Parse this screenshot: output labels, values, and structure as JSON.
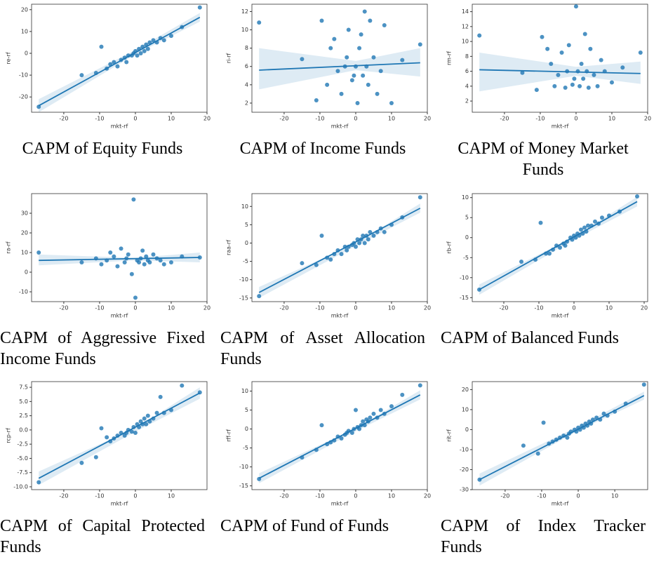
{
  "chart_data": [
    {
      "type": "scatter",
      "title": "CAPM of Equity Funds",
      "xlabel": "mkt-rf",
      "ylabel": "re-rf",
      "color": "#1f77b4",
      "xlim": [
        -29,
        20
      ],
      "xticks": [
        -20,
        -10,
        0,
        10,
        20
      ],
      "ylim": [
        -27,
        22.5
      ],
      "yticks": [
        -20,
        -10,
        0,
        10,
        20
      ],
      "x": [
        -27,
        -15,
        -11,
        -9.5,
        -8,
        -7,
        -6,
        -5,
        -4,
        -3,
        -2.5,
        -2,
        -1,
        -0.5,
        0,
        0.5,
        1,
        1.5,
        2,
        2.5,
        3,
        3.5,
        4,
        5,
        6,
        7,
        8,
        10,
        13,
        18
      ],
      "y": [
        -24.5,
        -10,
        -9,
        3,
        -7,
        -5,
        -4,
        -6,
        -3,
        -2,
        -4,
        -1,
        -1,
        0,
        1,
        -1,
        2,
        0,
        3,
        1,
        4,
        2,
        5,
        6,
        5,
        7,
        6,
        8,
        12,
        21
      ],
      "fit": {
        "x": [
          -27,
          18
        ],
        "y": [
          -24,
          16.5
        ]
      },
      "band": {
        "x": [
          -27,
          0,
          18
        ],
        "lower": [
          -27,
          -0.5,
          14.5
        ],
        "upper": [
          -21,
          1.5,
          18.5
        ]
      }
    },
    {
      "type": "scatter",
      "title": "CAPM of Income Funds",
      "xlabel": "mkt-rf",
      "ylabel": "ri-rf",
      "color": "#1f77b4",
      "xlim": [
        -29,
        20
      ],
      "xticks": [
        -20,
        -10,
        0,
        10,
        20
      ],
      "ylim": [
        1,
        12.8
      ],
      "yticks": [
        2,
        4,
        6,
        8,
        10,
        12
      ],
      "x": [
        -27,
        -15,
        -11,
        -9.5,
        -8,
        -7,
        -6,
        -5,
        -4,
        -3,
        -2.5,
        -2,
        -1,
        -0.5,
        0,
        0.5,
        1,
        1.5,
        2,
        2.5,
        3,
        3.5,
        4,
        5,
        6,
        7,
        8,
        10,
        13,
        18
      ],
      "y": [
        10.8,
        6.8,
        2.3,
        11,
        4,
        8,
        9,
        5.5,
        3,
        6,
        7,
        10,
        4.5,
        5,
        6,
        2,
        8,
        9.5,
        5,
        12,
        6,
        4,
        11,
        7,
        3,
        5.5,
        10.5,
        2,
        6.7,
        8.4
      ],
      "fit": {
        "x": [
          -27,
          18
        ],
        "y": [
          5.6,
          6.4
        ]
      },
      "band": {
        "x": [
          -27,
          0,
          18
        ],
        "lower": [
          3.5,
          5.6,
          4.9
        ],
        "upper": [
          8,
          6.6,
          8
        ]
      }
    },
    {
      "type": "scatter",
      "title": "CAPM of Money Market Funds",
      "xlabel": "mkt-rf",
      "ylabel": "rm-rf",
      "color": "#1f77b4",
      "xlim": [
        -29,
        20
      ],
      "xticks": [
        -20,
        -10,
        0,
        10,
        20
      ],
      "ylim": [
        0.5,
        15
      ],
      "yticks": [
        2,
        4,
        6,
        8,
        10,
        12,
        14
      ],
      "x": [
        -27,
        -15,
        -11,
        -9.5,
        -8,
        -7,
        -6,
        -5,
        -4,
        -3,
        -2.5,
        -2,
        -1,
        -0.5,
        0,
        0.5,
        1,
        1.5,
        2,
        2.5,
        3,
        3.5,
        4,
        5,
        6,
        7,
        8,
        10,
        13,
        18
      ],
      "y": [
        10.8,
        5.8,
        3.5,
        10.6,
        9,
        7,
        4,
        5.5,
        8.5,
        3.8,
        6,
        9.5,
        4.2,
        5,
        14.7,
        6,
        4,
        7,
        5,
        11,
        6,
        3.8,
        9,
        5.5,
        4,
        7.5,
        6,
        4.5,
        6.5,
        8.5
      ],
      "fit": {
        "x": [
          -27,
          18
        ],
        "y": [
          6.2,
          5.7
        ]
      },
      "band": {
        "x": [
          -27,
          0,
          18
        ],
        "lower": [
          3.3,
          5.4,
          4.3
        ],
        "upper": [
          8.5,
          6.6,
          7.3
        ]
      }
    },
    {
      "type": "scatter",
      "title": "CAPM of Aggressive Fixed Income Funds",
      "xlabel": "mkt-rf",
      "ylabel": "ra-rf",
      "color": "#1f77b4",
      "xlim": [
        -29,
        20
      ],
      "xticks": [
        -20,
        -10,
        0,
        10,
        20
      ],
      "ylim": [
        -15,
        40
      ],
      "yticks": [
        -10,
        0,
        10,
        20,
        30
      ],
      "x": [
        -27,
        -15,
        -11,
        -9.5,
        -8,
        -7,
        -6,
        -5,
        -4,
        -3,
        -2.5,
        -2,
        -1,
        -0.5,
        0,
        0.5,
        1,
        1.5,
        2,
        2.5,
        3,
        3.5,
        4,
        5,
        6,
        7,
        8,
        10,
        13,
        18
      ],
      "y": [
        10,
        5,
        7,
        4,
        6,
        10,
        8,
        3,
        12,
        5,
        7,
        9,
        -1,
        37,
        -13,
        6,
        5,
        7,
        11,
        4,
        8,
        6,
        5,
        9,
        7,
        6,
        4,
        5,
        8,
        7.5
      ],
      "fit": {
        "x": [
          -27,
          18
        ],
        "y": [
          6,
          7.5
        ]
      },
      "band": {
        "x": [
          -27,
          0,
          18
        ],
        "lower": [
          3.5,
          6,
          5
        ],
        "upper": [
          9,
          7.3,
          10
        ]
      }
    },
    {
      "type": "scatter",
      "title": "CAPM of Asset Allocation Funds",
      "xlabel": "mkt-rf",
      "ylabel": "raa-rf",
      "color": "#1f77b4",
      "xlim": [
        -29,
        20
      ],
      "xticks": [
        -20,
        -10,
        0,
        10,
        20
      ],
      "ylim": [
        -16,
        13.5
      ],
      "yticks": [
        -15,
        -10,
        -5,
        0,
        5,
        10
      ],
      "x": [
        -27,
        -15,
        -11,
        -9.5,
        -8,
        -7,
        -6,
        -5,
        -4,
        -3,
        -2.5,
        -2,
        -1,
        -0.5,
        0,
        0.5,
        1,
        1.5,
        2,
        2.5,
        3,
        3.5,
        4,
        5,
        6,
        7,
        8,
        10,
        13,
        18
      ],
      "y": [
        -14.5,
        -5.5,
        -6,
        2,
        -4,
        -4.5,
        -3,
        -2,
        -3,
        -1,
        -2,
        -1,
        -0.5,
        0,
        -1,
        1,
        0,
        1,
        2,
        0,
        2,
        1,
        3,
        2,
        3,
        4,
        3,
        5,
        7,
        12.5
      ],
      "fit": {
        "x": [
          -27,
          18
        ],
        "y": [
          -13.5,
          9.5
        ]
      },
      "band": {
        "x": [
          -27,
          0,
          18
        ],
        "lower": [
          -15,
          -0.8,
          8.3
        ],
        "upper": [
          -12,
          -0.1,
          10.8
        ]
      }
    },
    {
      "type": "scatter",
      "title": "CAPM of Balanced Funds",
      "xlabel": "mkt-rf",
      "ylabel": "rb-rf",
      "color": "#1f77b4",
      "xlim": [
        -29,
        21
      ],
      "xticks": [
        -20,
        -10,
        0,
        10,
        20
      ],
      "ylim": [
        -16,
        11
      ],
      "yticks": [
        -15,
        -10,
        -5,
        0,
        5,
        10
      ],
      "x": [
        -27,
        -15,
        -11,
        -9.5,
        -8,
        -7,
        -6,
        -5,
        -4,
        -3,
        -2.5,
        -2,
        -1,
        -0.5,
        0,
        0.5,
        1,
        1.5,
        2,
        2.5,
        3,
        3.5,
        4,
        5,
        6,
        7,
        8,
        10,
        13,
        18
      ],
      "y": [
        -13,
        -6,
        -5.5,
        3.7,
        -4,
        -4,
        -3,
        -2,
        -2.5,
        -1.5,
        -2,
        -1,
        0,
        -0.5,
        0.5,
        0,
        1,
        0.5,
        2,
        1,
        2.5,
        1.5,
        3,
        3,
        4,
        3.5,
        5,
        5.5,
        6.5,
        10.3
      ],
      "fit": {
        "x": [
          -27,
          18
        ],
        "y": [
          -13,
          9
        ]
      },
      "band": {
        "x": [
          -27,
          0,
          18
        ],
        "lower": [
          -14.3,
          -0.5,
          7.8
        ],
        "upper": [
          -11.7,
          0.2,
          10.2
        ]
      }
    },
    {
      "type": "scatter",
      "title": "CAPM of Capital Protected Funds",
      "xlabel": "mkt-rf",
      "ylabel": "rcp-rf",
      "color": "#1f77b4",
      "xlim": [
        -29,
        20
      ],
      "xticks": [
        -20,
        -10,
        0,
        10
      ],
      "ylim": [
        -10.5,
        8.5
      ],
      "yticks": [
        {
          "value": -10,
          "label": "-10.0"
        },
        {
          "value": -7.5,
          "label": "-7.5"
        },
        {
          "value": -5,
          "label": "-5.0"
        },
        {
          "value": -2.5,
          "label": "-2.5"
        },
        {
          "value": 0,
          "label": "0.0"
        },
        {
          "value": 2.5,
          "label": "2.5"
        },
        {
          "value": 5,
          "label": "5.0"
        },
        {
          "value": 7.5,
          "label": "7.5"
        }
      ],
      "x": [
        -27,
        -15,
        -11,
        -9.5,
        -8,
        -7,
        -6,
        -5,
        -4,
        -3,
        -2.5,
        -2,
        -1,
        -0.5,
        0,
        0.5,
        1,
        1.5,
        2,
        2.5,
        3,
        3.5,
        4,
        5,
        6,
        7,
        8,
        10,
        13,
        18
      ],
      "y": [
        -9.2,
        -5.8,
        -4.8,
        0.3,
        -1.3,
        -2,
        -1.5,
        -1,
        -0.5,
        -1,
        -0.5,
        0,
        -0.3,
        0.5,
        -0.5,
        1,
        0.5,
        1.5,
        1,
        2,
        1,
        2.5,
        1.5,
        2,
        3,
        5.8,
        3,
        3.5,
        7.8,
        6.6
      ],
      "fit": {
        "x": [
          -27,
          18
        ],
        "y": [
          -8.5,
          6.5
        ]
      },
      "band": {
        "x": [
          -27,
          0,
          18
        ],
        "lower": [
          -9.7,
          -0.3,
          5.5
        ],
        "upper": [
          -7.3,
          0.3,
          7.5
        ]
      }
    },
    {
      "type": "scatter",
      "title": "CAPM of Fund of Funds",
      "xlabel": "mkt-rf",
      "ylabel": "rff-rf",
      "color": "#1f77b4",
      "xlim": [
        -29,
        20
      ],
      "xticks": [
        -20,
        -10,
        0,
        10,
        20
      ],
      "ylim": [
        -16,
        12.5
      ],
      "yticks": [
        -15,
        -10,
        -5,
        0,
        5,
        10
      ],
      "x": [
        -27,
        -15,
        -11,
        -9.5,
        -8,
        -7,
        -6,
        -5,
        -4,
        -3,
        -2.5,
        -2,
        -1,
        -0.5,
        0,
        0.5,
        1,
        1.5,
        2,
        2.5,
        3,
        3.5,
        4,
        5,
        6,
        7,
        8,
        10,
        13,
        18
      ],
      "y": [
        -13.2,
        -7.5,
        -5.5,
        1,
        -4,
        -3.5,
        -3,
        -2,
        -2.5,
        -1.5,
        -1,
        -0.5,
        -1,
        0,
        5,
        0.5,
        0,
        1,
        2,
        1,
        2.5,
        2,
        3,
        4,
        3,
        5,
        4,
        6,
        9,
        11.5
      ],
      "fit": {
        "x": [
          -27,
          18
        ],
        "y": [
          -13,
          9
        ]
      },
      "band": {
        "x": [
          -27,
          0,
          18
        ],
        "lower": [
          -14.3,
          -0.6,
          7.8
        ],
        "upper": [
          -11.7,
          0.2,
          10.2
        ]
      }
    },
    {
      "type": "scatter",
      "title": "CAPM of Index Tracker Funds",
      "xlabel": "mkt-rf",
      "ylabel": "rit-rf",
      "color": "#1f77b4",
      "xlim": [
        -29,
        19
      ],
      "xticks": [
        -20,
        -10,
        0,
        10
      ],
      "ylim": [
        -30,
        24
      ],
      "yticks": [
        -30,
        -20,
        -10,
        0,
        10,
        20
      ],
      "x": [
        -27,
        -15,
        -11,
        -9.5,
        -8,
        -7,
        -6,
        -5,
        -4,
        -3,
        -2.5,
        -2,
        -1,
        -0.5,
        0,
        0.5,
        1,
        1.5,
        2,
        2.5,
        3,
        3.5,
        4,
        5,
        6,
        7,
        8,
        10,
        13,
        18
      ],
      "y": [
        -25,
        -8,
        -12,
        3.5,
        -7,
        -6,
        -5,
        -4,
        -3,
        -4,
        -2,
        -1,
        0,
        -1,
        1,
        0,
        2,
        1,
        3,
        2,
        4,
        3,
        5,
        6,
        5,
        8,
        7,
        9,
        13,
        22.5
      ],
      "fit": {
        "x": [
          -27,
          18
        ],
        "y": [
          -25,
          17
        ]
      },
      "band": {
        "x": [
          -27,
          0,
          18
        ],
        "lower": [
          -28,
          -0.5,
          15
        ],
        "upper": [
          -22,
          1.5,
          19
        ]
      }
    }
  ]
}
